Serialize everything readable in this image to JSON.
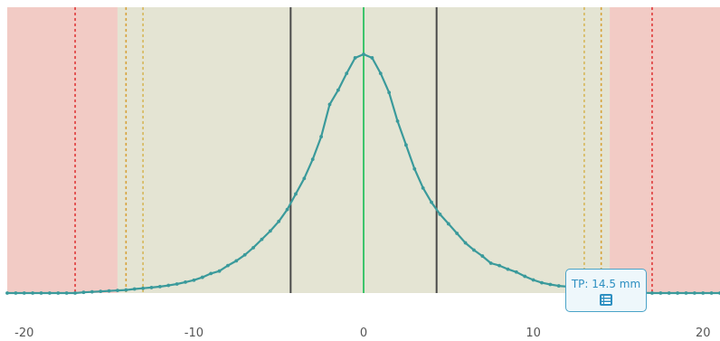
{
  "chart_data": {
    "type": "line",
    "title": "",
    "xlabel": "",
    "ylabel": "",
    "xlim": [
      -21,
      21
    ],
    "ylim": [
      0,
      1.02
    ],
    "x_ticks": [
      -20,
      -10,
      0,
      10,
      20
    ],
    "x_tick_labels": [
      "-20",
      "-10",
      "0",
      "10",
      "20"
    ],
    "grid": false,
    "legend": "none",
    "series": [
      {
        "color": "#3a9a9b",
        "x": [
          -21,
          -20.5,
          -20,
          -19.5,
          -19,
          -18.5,
          -18,
          -17.5,
          -17,
          -16.5,
          -16,
          -15.5,
          -15,
          -14.5,
          -14,
          -13.5,
          -13,
          -12.5,
          -12,
          -11.5,
          -11,
          -10.5,
          -10,
          -9.5,
          -9,
          -8.5,
          -8,
          -7.5,
          -7,
          -6.5,
          -6,
          -5.5,
          -5,
          -4.5,
          -4,
          -3.5,
          -3,
          -2.5,
          -2,
          -1.5,
          -1,
          -0.5,
          0,
          0.5,
          1,
          1.5,
          2,
          2.5,
          3,
          3.5,
          4,
          4.5,
          5,
          5.5,
          6,
          6.5,
          7,
          7.5,
          8,
          8.5,
          9,
          9.5,
          10,
          10.5,
          11,
          11.5,
          12,
          12.5,
          13,
          13.5,
          14,
          14.5,
          15,
          15.5,
          16,
          16.5,
          17,
          17.5,
          18,
          18.5,
          19,
          19.5,
          20,
          20.5,
          21
        ],
        "y": [
          0,
          0,
          0,
          0,
          0,
          0,
          0,
          0,
          0,
          0.003,
          0.005,
          0.007,
          0.009,
          0.011,
          0.013,
          0.017,
          0.02,
          0.023,
          0.027,
          0.032,
          0.038,
          0.046,
          0.054,
          0.066,
          0.082,
          0.092,
          0.115,
          0.135,
          0.16,
          0.19,
          0.225,
          0.26,
          0.3,
          0.35,
          0.415,
          0.48,
          0.56,
          0.655,
          0.79,
          0.85,
          0.92,
          0.985,
          1.0,
          0.985,
          0.92,
          0.84,
          0.72,
          0.62,
          0.52,
          0.44,
          0.38,
          0.33,
          0.29,
          0.25,
          0.21,
          0.18,
          0.155,
          0.125,
          0.115,
          0.1,
          0.088,
          0.07,
          0.055,
          0.043,
          0.036,
          0.03,
          0.027,
          0.022,
          0.017,
          0.012,
          0.007,
          0.005,
          0.003,
          0.002,
          0.001,
          0.001,
          0,
          0,
          0,
          0,
          0,
          0,
          0,
          0,
          0
        ]
      }
    ],
    "regions": [
      {
        "from": -21,
        "to": -14.5,
        "color": "#f2cbc5"
      },
      {
        "from": -14.5,
        "to": 14.5,
        "color": "#e4e4d3"
      },
      {
        "from": 14.5,
        "to": 21,
        "color": "#f2cbc5"
      }
    ],
    "vlines": [
      {
        "x": -17,
        "color": "#e03a3a",
        "style": "dotted"
      },
      {
        "x": 17,
        "color": "#e03a3a",
        "style": "dotted"
      },
      {
        "x": -14,
        "color": "#d6a23a",
        "style": "dotted"
      },
      {
        "x": -13,
        "color": "#d6b75a",
        "style": "dotted"
      },
      {
        "x": 13,
        "color": "#d6b75a",
        "style": "dotted"
      },
      {
        "x": 14,
        "color": "#d6a23a",
        "style": "dotted"
      },
      {
        "x": -4.3,
        "color": "#4a4a4a",
        "style": "solid"
      },
      {
        "x": 4.3,
        "color": "#4a4a4a",
        "style": "solid"
      },
      {
        "x": 0,
        "color": "#3ec46b",
        "style": "solid"
      }
    ],
    "annotation": {
      "text": "TP: 14.5 mm",
      "x": 14.5,
      "icon": "list-icon"
    }
  }
}
